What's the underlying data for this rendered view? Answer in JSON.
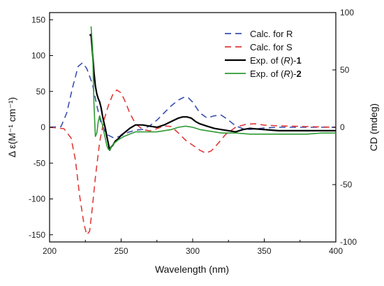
{
  "chart_data": {
    "type": "line",
    "xlabel": "Wavelength (nm)",
    "ylabel_left": "Δ ε(M⁻¹ cm⁻¹)",
    "ylabel_right": "CD (mdeg)",
    "xlim": [
      200,
      400
    ],
    "ylim_left": [
      -160,
      160
    ],
    "ylim_right": [
      -100,
      100
    ],
    "x_ticks": [
      200,
      250,
      300,
      350,
      400
    ],
    "y_ticks_left": [
      150,
      100,
      50,
      0,
      -50,
      -100,
      -150
    ],
    "y_ticks_right": [
      100,
      50,
      0,
      -50,
      -100
    ],
    "legend_position": "top-right",
    "series": [
      {
        "name": "Calc. for R",
        "color": "#3a4fb0",
        "dash": "dashed",
        "axis": "left",
        "points": [
          [
            200,
            0
          ],
          [
            208,
            1
          ],
          [
            212,
            20
          ],
          [
            216,
            55
          ],
          [
            220,
            85
          ],
          [
            223,
            90
          ],
          [
            226,
            82
          ],
          [
            230,
            60
          ],
          [
            233,
            30
          ],
          [
            236,
            5
          ],
          [
            240,
            -10
          ],
          [
            245,
            -15
          ],
          [
            250,
            -12
          ],
          [
            255,
            -7
          ],
          [
            260,
            -4
          ],
          [
            265,
            -3
          ],
          [
            270,
            2
          ],
          [
            275,
            10
          ],
          [
            280,
            20
          ],
          [
            285,
            30
          ],
          [
            290,
            38
          ],
          [
            294,
            42
          ],
          [
            297,
            41
          ],
          [
            300,
            35
          ],
          [
            305,
            20
          ],
          [
            310,
            13
          ],
          [
            315,
            16
          ],
          [
            320,
            17
          ],
          [
            325,
            10
          ],
          [
            330,
            2
          ],
          [
            335,
            -2
          ],
          [
            340,
            -3
          ],
          [
            350,
            -1
          ],
          [
            360,
            0
          ],
          [
            380,
            0
          ],
          [
            400,
            0
          ]
        ]
      },
      {
        "name": "Calc. for S",
        "color": "#e03a3a",
        "dash": "dashed",
        "axis": "left",
        "points": [
          [
            200,
            0
          ],
          [
            210,
            -2
          ],
          [
            215,
            -15
          ],
          [
            218,
            -45
          ],
          [
            221,
            -95
          ],
          [
            224,
            -135
          ],
          [
            226,
            -150
          ],
          [
            228,
            -145
          ],
          [
            230,
            -110
          ],
          [
            232,
            -70
          ],
          [
            235,
            -20
          ],
          [
            238,
            10
          ],
          [
            241,
            30
          ],
          [
            244,
            45
          ],
          [
            247,
            52
          ],
          [
            250,
            48
          ],
          [
            253,
            35
          ],
          [
            256,
            20
          ],
          [
            260,
            5
          ],
          [
            265,
            -3
          ],
          [
            270,
            -5
          ],
          [
            275,
            -2
          ],
          [
            280,
            2
          ],
          [
            285,
            1
          ],
          [
            290,
            -8
          ],
          [
            295,
            -18
          ],
          [
            300,
            -25
          ],
          [
            305,
            -32
          ],
          [
            309,
            -36
          ],
          [
            313,
            -33
          ],
          [
            318,
            -22
          ],
          [
            323,
            -10
          ],
          [
            330,
            0
          ],
          [
            337,
            4
          ],
          [
            343,
            5
          ],
          [
            350,
            3
          ],
          [
            360,
            2
          ],
          [
            380,
            1
          ],
          [
            400,
            0
          ]
        ]
      },
      {
        "name": "Exp. of (R)-1",
        "label_suffix": "1",
        "color": "#000000",
        "dash": "solid",
        "axis": "right",
        "points": [
          [
            228,
            80
          ],
          [
            229,
            81
          ],
          [
            230,
            65
          ],
          [
            231,
            48
          ],
          [
            232,
            36
          ],
          [
            233,
            29
          ],
          [
            234,
            25
          ],
          [
            235,
            22
          ],
          [
            236,
            17
          ],
          [
            237,
            10
          ],
          [
            238,
            4
          ],
          [
            239,
            -1
          ],
          [
            240,
            -8
          ],
          [
            241,
            -14
          ],
          [
            242,
            -20
          ],
          [
            243,
            -17
          ],
          [
            244,
            -16
          ],
          [
            246,
            -12
          ],
          [
            248,
            -10
          ],
          [
            250,
            -7
          ],
          [
            253,
            -4
          ],
          [
            256,
            -1
          ],
          [
            260,
            2
          ],
          [
            265,
            2
          ],
          [
            270,
            1
          ],
          [
            275,
            0
          ],
          [
            280,
            2
          ],
          [
            285,
            5
          ],
          [
            290,
            8
          ],
          [
            293,
            9
          ],
          [
            296,
            9
          ],
          [
            299,
            8
          ],
          [
            302,
            5
          ],
          [
            305,
            3
          ],
          [
            310,
            1
          ],
          [
            315,
            -1
          ],
          [
            320,
            -2
          ],
          [
            325,
            -3
          ],
          [
            330,
            -4
          ],
          [
            335,
            -2
          ],
          [
            340,
            -1
          ],
          [
            350,
            -2
          ],
          [
            360,
            -3
          ],
          [
            370,
            -3
          ],
          [
            380,
            -3
          ],
          [
            390,
            -3
          ],
          [
            400,
            -3
          ]
        ]
      },
      {
        "name": "Exp. of (R)-2",
        "label_suffix": "2",
        "color": "#2e9a32",
        "dash": "solid",
        "axis": "right",
        "points": [
          [
            229,
            88
          ],
          [
            230,
            70
          ],
          [
            231,
            20
          ],
          [
            232,
            -8
          ],
          [
            233,
            -5
          ],
          [
            234,
            5
          ],
          [
            235,
            10
          ],
          [
            236,
            6
          ],
          [
            237,
            2
          ],
          [
            238,
            -4
          ],
          [
            239,
            -10
          ],
          [
            240,
            -16
          ],
          [
            241,
            -19
          ],
          [
            242,
            -20
          ],
          [
            243,
            -17
          ],
          [
            245,
            -14
          ],
          [
            248,
            -11
          ],
          [
            252,
            -8
          ],
          [
            256,
            -6
          ],
          [
            260,
            -4
          ],
          [
            265,
            -4
          ],
          [
            270,
            -4
          ],
          [
            275,
            -4
          ],
          [
            280,
            -3
          ],
          [
            285,
            -2
          ],
          [
            290,
            0
          ],
          [
            295,
            1
          ],
          [
            300,
            0
          ],
          [
            305,
            -2
          ],
          [
            310,
            -3
          ],
          [
            320,
            -5
          ],
          [
            330,
            -5
          ],
          [
            340,
            -6
          ],
          [
            350,
            -6
          ],
          [
            360,
            -6
          ],
          [
            370,
            -6
          ],
          [
            380,
            -6
          ],
          [
            390,
            -5
          ],
          [
            400,
            -5
          ]
        ]
      }
    ]
  }
}
